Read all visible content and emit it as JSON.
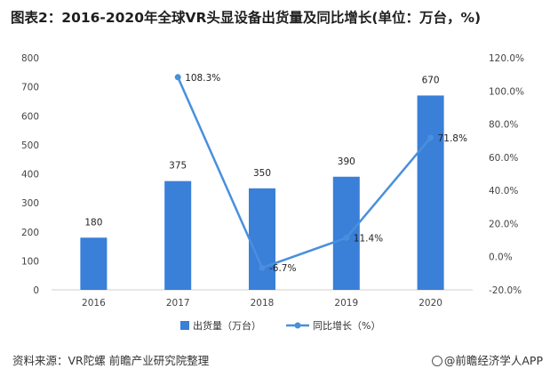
{
  "title": "图表2：2016-2020年全球VR头显设备出货量及同比增长(单位：万台，%)",
  "source": "资料来源：VR陀螺 前瞻产业研究院整理",
  "brand": "@前瞻经济学人APP",
  "chart_data": {
    "type": "bar",
    "categories": [
      "2016",
      "2017",
      "2018",
      "2019",
      "2020"
    ],
    "series": [
      {
        "name": "出货量（万台）",
        "type": "bar",
        "axis": "left",
        "color": "#3a7fd8",
        "values": [
          180,
          375,
          350,
          390,
          670
        ],
        "labels": [
          "180",
          "375",
          "350",
          "390",
          "670"
        ]
      },
      {
        "name": "同比增长（%）",
        "type": "line",
        "axis": "right",
        "color": "#4a8fde",
        "values": [
          null,
          108.3,
          -6.7,
          11.4,
          71.8
        ],
        "labels": [
          "",
          "108.3%",
          "-6.7%",
          "11.4%",
          "71.8%"
        ]
      }
    ],
    "left_axis": {
      "min": 0,
      "max": 800,
      "ticks": [
        "0",
        "100",
        "200",
        "300",
        "400",
        "500",
        "600",
        "700",
        "800"
      ]
    },
    "right_axis": {
      "min": -20,
      "max": 120,
      "ticks": [
        "-20.0%",
        "0.0%",
        "20.0%",
        "40.0%",
        "60.0%",
        "80.0%",
        "100.0%",
        "120.0%"
      ]
    },
    "grid": false,
    "legend_position": "bottom"
  }
}
